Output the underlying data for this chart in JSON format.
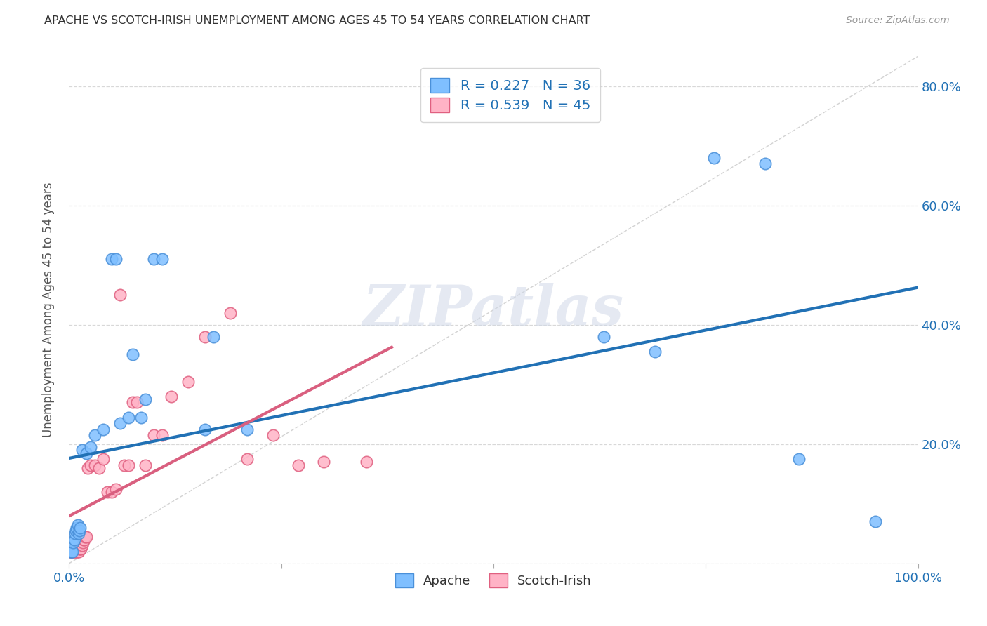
{
  "title": "APACHE VS SCOTCH-IRISH UNEMPLOYMENT AMONG AGES 45 TO 54 YEARS CORRELATION CHART",
  "source": "Source: ZipAtlas.com",
  "ylabel": "Unemployment Among Ages 45 to 54 years",
  "xlim": [
    0.0,
    1.0
  ],
  "ylim": [
    0.0,
    0.85
  ],
  "apache_color": "#7fbfff",
  "apache_edge_color": "#4a90d9",
  "scotch_irish_color": "#ffb3c6",
  "scotch_irish_edge_color": "#e06080",
  "apache_R": 0.227,
  "apache_N": 36,
  "scotch_irish_R": 0.539,
  "scotch_irish_N": 45,
  "apache_line_color": "#2171b5",
  "scotch_line_color": "#d95f7f",
  "apache_x": [
    0.001,
    0.002,
    0.003,
    0.004,
    0.005,
    0.006,
    0.007,
    0.008,
    0.009,
    0.01,
    0.011,
    0.012,
    0.013,
    0.015,
    0.02,
    0.025,
    0.03,
    0.04,
    0.05,
    0.055,
    0.06,
    0.07,
    0.075,
    0.085,
    0.09,
    0.1,
    0.11,
    0.16,
    0.17,
    0.21,
    0.63,
    0.69,
    0.76,
    0.82,
    0.86,
    0.95
  ],
  "apache_y": [
    0.02,
    0.02,
    0.02,
    0.02,
    0.035,
    0.04,
    0.05,
    0.055,
    0.06,
    0.065,
    0.05,
    0.055,
    0.06,
    0.19,
    0.185,
    0.195,
    0.215,
    0.225,
    0.51,
    0.51,
    0.235,
    0.245,
    0.35,
    0.245,
    0.275,
    0.51,
    0.51,
    0.225,
    0.38,
    0.225,
    0.38,
    0.355,
    0.68,
    0.67,
    0.175,
    0.07
  ],
  "scotch_irish_x": [
    0.001,
    0.002,
    0.003,
    0.004,
    0.005,
    0.006,
    0.007,
    0.008,
    0.009,
    0.01,
    0.011,
    0.012,
    0.013,
    0.014,
    0.015,
    0.016,
    0.017,
    0.018,
    0.019,
    0.02,
    0.022,
    0.025,
    0.03,
    0.035,
    0.04,
    0.045,
    0.05,
    0.055,
    0.06,
    0.065,
    0.07,
    0.075,
    0.08,
    0.09,
    0.1,
    0.11,
    0.12,
    0.14,
    0.16,
    0.19,
    0.21,
    0.24,
    0.27,
    0.3,
    0.35
  ],
  "scotch_irish_y": [
    0.02,
    0.02,
    0.02,
    0.02,
    0.02,
    0.02,
    0.02,
    0.02,
    0.02,
    0.02,
    0.02,
    0.025,
    0.025,
    0.025,
    0.03,
    0.035,
    0.04,
    0.04,
    0.045,
    0.045,
    0.16,
    0.165,
    0.165,
    0.16,
    0.175,
    0.12,
    0.12,
    0.125,
    0.45,
    0.165,
    0.165,
    0.27,
    0.27,
    0.165,
    0.215,
    0.215,
    0.28,
    0.305,
    0.38,
    0.42,
    0.175,
    0.215,
    0.165,
    0.17,
    0.17
  ],
  "diagonal_color": "#c8c8c8",
  "watermark_text": "ZIPatlas",
  "background_color": "#ffffff",
  "grid_color": "#d8d8d8",
  "tick_label_color": "#2171b5"
}
